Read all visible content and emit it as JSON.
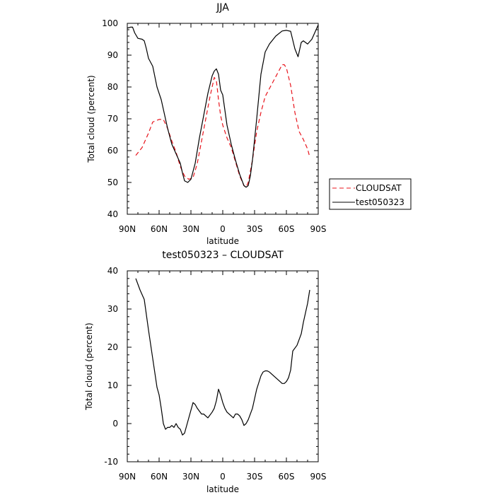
{
  "chart_data": [
    {
      "type": "line",
      "title": "JJA",
      "xlabel": "latitude",
      "ylabel": "Total cloud (percent)",
      "xlim": [
        90,
        -90
      ],
      "ylim": [
        40,
        100
      ],
      "xticks": [
        {
          "value": 90,
          "label": "90N"
        },
        {
          "value": 60,
          "label": "60N"
        },
        {
          "value": 30,
          "label": "30N"
        },
        {
          "value": 0,
          "label": "0"
        },
        {
          "value": -30,
          "label": "30S"
        },
        {
          "value": -60,
          "label": "60S"
        },
        {
          "value": -90,
          "label": "90S"
        }
      ],
      "yticks": [
        40,
        50,
        60,
        70,
        80,
        90,
        100
      ],
      "legend": {
        "placement": "right"
      },
      "series": [
        {
          "name": "CLOUDSAT",
          "color": "#e8141c",
          "dash": "dashed",
          "x": [
            82,
            76,
            70,
            66,
            60,
            56,
            52,
            48,
            44,
            40,
            36,
            32,
            28,
            24,
            20,
            16,
            12,
            8,
            6,
            4,
            2,
            0,
            -4,
            -8,
            -12,
            -16,
            -20,
            -22,
            -24,
            -28,
            -32,
            -36,
            -40,
            -44,
            -48,
            -52,
            -56,
            -58,
            -60,
            -64,
            -68,
            -72,
            -76,
            -80,
            -82
          ],
          "y": [
            58.5,
            61,
            65.5,
            69,
            69.8,
            69.8,
            67,
            63,
            59.5,
            55,
            52,
            51,
            51.5,
            56,
            63,
            70,
            77,
            83,
            82,
            76,
            71,
            68,
            64,
            61,
            56.5,
            52,
            49,
            48.5,
            50,
            57,
            66,
            72,
            77,
            79.5,
            82,
            84.5,
            87,
            87,
            86,
            80.5,
            72,
            66,
            63.5,
            60.5,
            58
          ]
        },
        {
          "name": "test050323",
          "color": "#000000",
          "dash": "solid",
          "x": [
            90,
            87,
            85,
            83,
            80,
            76,
            74,
            72,
            70,
            66,
            62,
            58,
            56,
            52,
            48,
            44,
            40,
            38,
            36,
            33,
            30,
            26,
            22,
            18,
            14,
            10,
            8,
            6,
            4,
            2,
            0,
            -4,
            -8,
            -12,
            -16,
            -20,
            -22,
            -24,
            -26,
            -28,
            -32,
            -36,
            -40,
            -44,
            -50,
            -56,
            -60,
            -64,
            -68,
            -71,
            -74,
            -76,
            -80,
            -84,
            -88,
            -90
          ],
          "y": [
            98.5,
            98.8,
            98.8,
            97,
            95.3,
            95,
            94.5,
            92,
            89,
            86.5,
            80,
            76,
            73,
            67,
            62,
            59,
            56,
            53,
            50.5,
            50,
            51,
            56,
            64,
            71,
            78,
            83.5,
            85,
            85.7,
            84,
            79,
            77.5,
            68,
            62,
            57,
            52.5,
            49,
            48.5,
            49,
            52,
            57,
            70,
            84,
            91,
            93.5,
            96,
            97.6,
            97.8,
            97.5,
            92,
            89.5,
            94,
            94.5,
            93.5,
            95,
            98,
            99.5
          ]
        }
      ]
    },
    {
      "type": "line",
      "title": "test050323 – CLOUDSAT",
      "xlabel": "latitude",
      "ylabel": "Total cloud (percent)",
      "xlim": [
        90,
        -90
      ],
      "ylim": [
        -10,
        40
      ],
      "xticks": [
        {
          "value": 90,
          "label": "90N"
        },
        {
          "value": 60,
          "label": "60N"
        },
        {
          "value": 30,
          "label": "30N"
        },
        {
          "value": 0,
          "label": "0"
        },
        {
          "value": -30,
          "label": "30S"
        },
        {
          "value": -60,
          "label": "60S"
        },
        {
          "value": -90,
          "label": "90S"
        }
      ],
      "yticks": [
        -10,
        0,
        10,
        20,
        30,
        40
      ],
      "series": [
        {
          "color": "#000000",
          "dash": "solid",
          "x": [
            82,
            78,
            74,
            70,
            66,
            62,
            60,
            58,
            56,
            54,
            52,
            50,
            48,
            46,
            44,
            42,
            40,
            38,
            36,
            32,
            28,
            26,
            24,
            20,
            18,
            14,
            10,
            8,
            6,
            4,
            2,
            0,
            -2,
            -4,
            -8,
            -10,
            -12,
            -14,
            -16,
            -18,
            -20,
            -22,
            -24,
            -28,
            -32,
            -36,
            -38,
            -40,
            -42,
            -44,
            -46,
            -50,
            -54,
            -56,
            -58,
            -60,
            -62,
            -64,
            -66,
            -70,
            -72,
            -74,
            -76,
            -80,
            -82
          ],
          "y": [
            38,
            35,
            32.5,
            24.5,
            17,
            9.5,
            7.5,
            4,
            0,
            -1.5,
            -1,
            -1,
            -0.5,
            -1,
            0,
            -1,
            -1.5,
            -3,
            -2.5,
            1.5,
            5.5,
            5,
            4,
            2.5,
            2.5,
            1.5,
            3,
            4,
            6,
            9,
            7.5,
            5.5,
            4,
            3,
            2,
            1.5,
            2.5,
            2.5,
            2,
            1,
            -0.5,
            0,
            1,
            4,
            9,
            12.5,
            13.5,
            13.8,
            13.8,
            13.5,
            13,
            12,
            11,
            10.5,
            10.5,
            11,
            12,
            14,
            19,
            20.5,
            22,
            23.5,
            26.5,
            31.5,
            35
          ]
        }
      ]
    }
  ]
}
